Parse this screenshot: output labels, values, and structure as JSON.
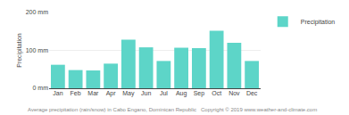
{
  "chart_data": {
    "type": "bar",
    "categories": [
      "Jan",
      "Feb",
      "Mar",
      "Apr",
      "May",
      "Jun",
      "Jul",
      "Aug",
      "Sep",
      "Oct",
      "Nov",
      "Dec"
    ],
    "series": [
      {
        "name": "Precipitation",
        "color": "#5dd5c8",
        "values": [
          62,
          48,
          47,
          65,
          128,
          108,
          72,
          107,
          106,
          152,
          120,
          72
        ]
      }
    ],
    "ylabel": "Precipitation",
    "caption": "Average precipitation (rain/snow) in Cabo Engano, Dominican Republic   Copyright © 2019 www.weather-and-climate.com",
    "ylim": [
      0,
      200
    ],
    "yticks": [
      {
        "value": 0,
        "label": "0 mm"
      },
      {
        "value": 100,
        "label": "100 mm"
      },
      {
        "value": 200,
        "label": "200 mm"
      }
    ],
    "grid": true,
    "legend": "upper right"
  }
}
